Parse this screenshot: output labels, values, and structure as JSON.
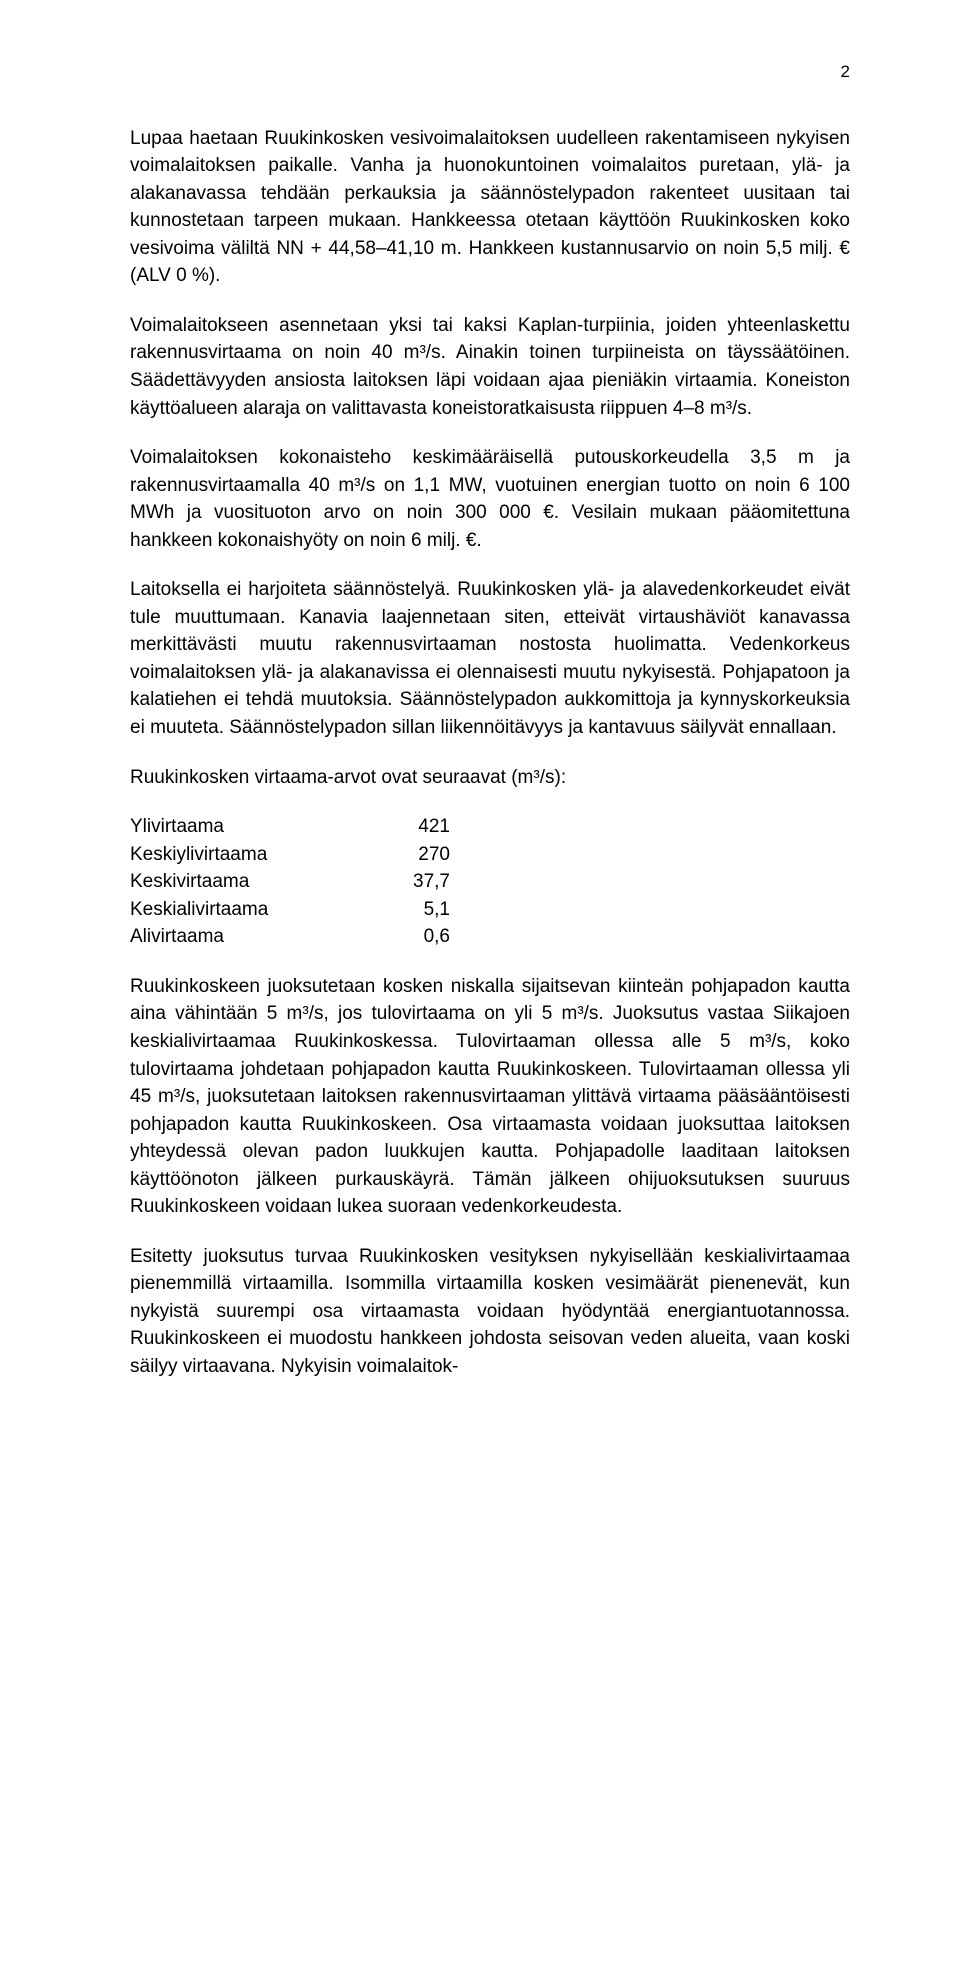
{
  "page_number": "2",
  "paragraphs": {
    "p1": "Lupaa haetaan Ruukinkosken vesivoimalaitoksen uudelleen rakentamiseen nykyisen voimalaitoksen paikalle. Vanha ja huonokuntoinen voimalaitos puretaan, ylä- ja alakanavassa tehdään perkauksia ja säännöstelypadon rakenteet uusitaan tai kunnostetaan tarpeen mukaan. Hankkeessa otetaan käyttöön Ruukinkosken koko vesivoima väliltä NN + 44,58–41,10 m. Hankkeen kustannusarvio on noin 5,5 milj. € (ALV 0 %).",
    "p2": "Voimalaitokseen asennetaan yksi tai kaksi Kaplan-turpiinia, joiden yhteenlaskettu rakennusvirtaama on noin 40 m³/s. Ainakin toinen turpiineista on täyssäätöinen. Säädettävyyden ansiosta laitoksen läpi voidaan ajaa pieniäkin virtaamia. Koneiston käyttöalueen alaraja on valittavasta koneistoratkaisusta riippuen 4–8 m³/s.",
    "p3": "Voimalaitoksen kokonaisteho keskimääräisellä putouskorkeudella 3,5 m ja rakennusvirtaamalla 40 m³/s on 1,1 MW, vuotuinen energian tuotto on noin 6 100 MWh ja vuosituoton arvo on noin 300 000 €. Vesilain mukaan pääomitettuna hankkeen kokonaishyöty on noin 6 milj. €.",
    "p4": "Laitoksella ei harjoiteta säännöstelyä. Ruukinkosken ylä- ja alavedenkorkeudet eivät tule muuttumaan. Kanavia laajennetaan siten, etteivät virtaushäviöt kanavassa merkittävästi muutu rakennusvirtaaman nostosta huolimatta. Vedenkorkeus voimalaitoksen ylä- ja alakanavissa ei olennaisesti muutu nykyisestä. Pohjapatoon ja kalatiehen ei tehdä muutoksia. Säännöstelypadon aukkomittoja ja kynnyskorkeuksia ei muuteta. Säännöstelypadon sillan liikennöitävyys ja kantavuus säilyvät ennallaan.",
    "p5": "Ruukinkosken virtaama-arvot ovat seuraavat (m³/s):",
    "p6": "Ruukinkoskeen juoksutetaan kosken niskalla sijaitsevan kiinteän pohjapadon kautta aina vähintään 5 m³/s, jos tulovirtaama on yli 5 m³/s. Juoksutus vastaa Siikajoen keskialivirtaamaa Ruukinkoskessa. Tulovirtaaman ollessa alle 5 m³/s, koko tulovirtaama johdetaan pohjapadon kautta Ruukinkoskeen. Tulovirtaaman ollessa yli 45 m³/s, juoksutetaan laitoksen rakennusvirtaaman ylittävä virtaama pääsääntöisesti pohjapadon kautta Ruukinkoskeen. Osa virtaamasta voidaan juoksuttaa laitoksen yhteydessä olevan padon luukkujen kautta. Pohjapadolle laaditaan laitoksen käyttöönoton jälkeen purkauskäyrä. Tämän jälkeen ohijuoksutuksen suuruus Ruukinkoskeen voidaan lukea suoraan vedenkorkeudesta.",
    "p7": "Esitetty juoksutus turvaa Ruukinkosken vesityksen nykyisellään keskialivirtaamaa pienemmillä virtaamilla. Isommilla virtaamilla kosken vesimäärät pienenevät, kun nykyistä suurempi osa virtaamasta voidaan hyödyntää energiantuotannossa. Ruukinkoskeen ei muodostu hankkeen johdosta seisovan veden alueita, vaan koski säilyy virtaavana. Nykyisin voimalaitok-"
  },
  "flow_table": {
    "rows": [
      {
        "label": "Ylivirtaama",
        "value": "421"
      },
      {
        "label": "Keskiylivirtaama",
        "value": "270"
      },
      {
        "label": "Keskivirtaama",
        "value": "37,7"
      },
      {
        "label": "Keskialivirtaama",
        "value": "5,1"
      },
      {
        "label": "Alivirtaama",
        "value": "0,6"
      }
    ]
  }
}
